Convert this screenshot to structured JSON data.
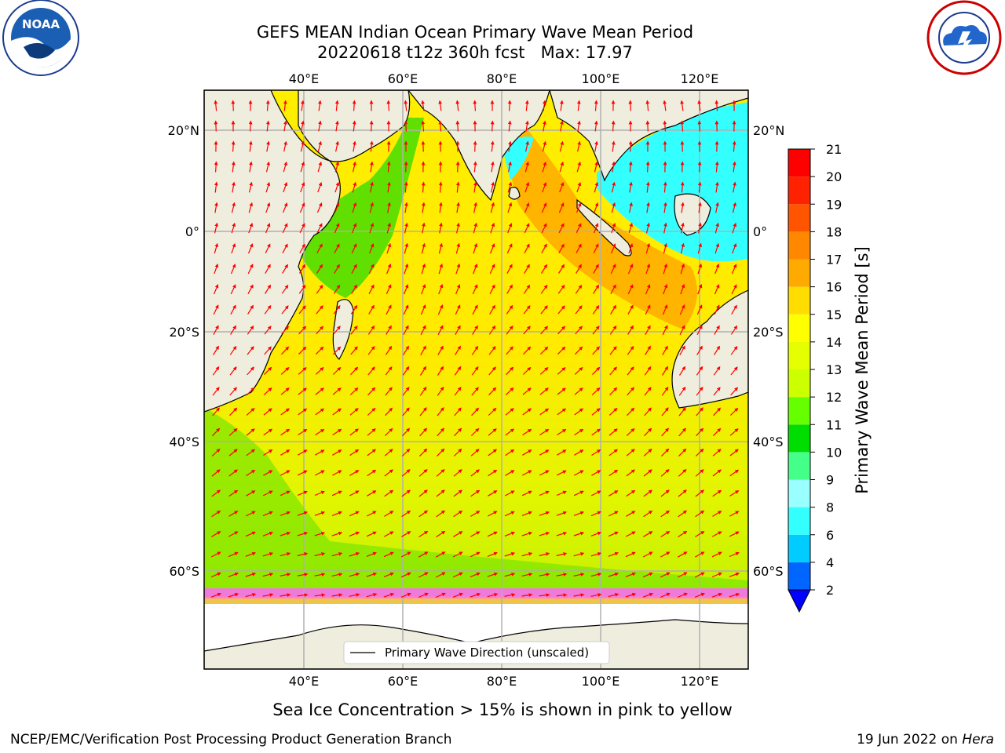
{
  "header": {
    "title_line1": "GEFS MEAN Indian Ocean Primary Wave Mean Period",
    "title_line2": "20220618 t12z 360h fcst   Max: 17.97"
  },
  "logos": {
    "left": {
      "icon": "noaa-logo-icon",
      "text": "NOAA"
    },
    "right": {
      "icon": "national-weather-service-logo-icon"
    }
  },
  "map": {
    "lon_ticks": [
      "40°E",
      "60°E",
      "80°E",
      "100°E",
      "120°E"
    ],
    "lat_ticks": [
      "20°N",
      "0°",
      "20°S",
      "40°S",
      "60°S"
    ],
    "legend_label": "Primary Wave Direction (unscaled)",
    "colors": {
      "land": "#efedde",
      "ice": "#ffffff",
      "arrow": "#ff0000",
      "grid": "#b0b0b0"
    }
  },
  "colorbar": {
    "label": "Primary Wave Mean Period [s]",
    "levels": [
      "2",
      "4",
      "6",
      "8",
      "9",
      "10",
      "11",
      "12",
      "13",
      "14",
      "15",
      "16",
      "17",
      "18",
      "19",
      "20",
      "21"
    ],
    "colors": [
      "#0066ff",
      "#00ccff",
      "#33ffff",
      "#99ffff",
      "#44ff88",
      "#00dd00",
      "#66ff00",
      "#ccff00",
      "#e6ff00",
      "#ffff00",
      "#ffdd00",
      "#ffaa00",
      "#ff8800",
      "#ff5500",
      "#ff2200",
      "#ff0000"
    ],
    "extend_color": "#0000ff"
  },
  "caption": "Sea Ice Concentration > 15% is shown in pink to yellow",
  "footer": {
    "left": "NCEP/EMC/Verification Post Processing Product Generation Branch",
    "right_date": "19 Jun 2022 on ",
    "right_host": "Hera"
  }
}
